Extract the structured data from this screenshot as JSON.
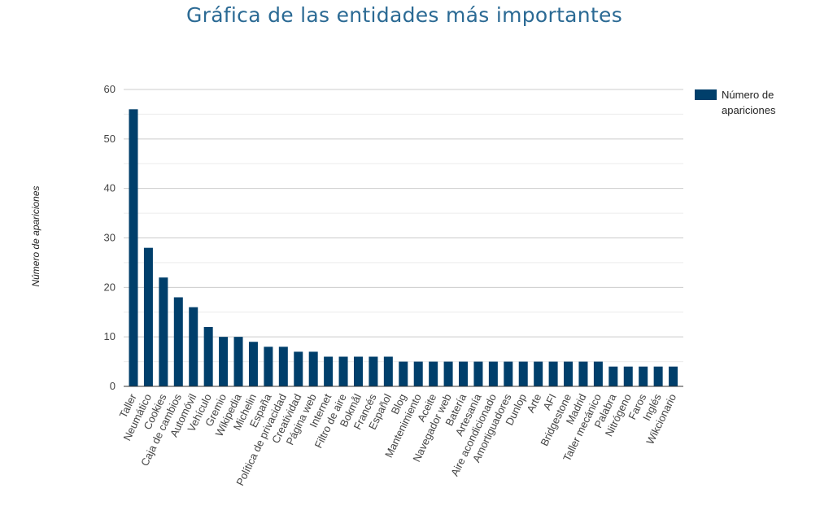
{
  "chart_data": {
    "type": "bar",
    "title": "Gráfica de las entidades más importantes",
    "ylabel": "Número de apariciones",
    "xlabel": "",
    "ylim": [
      0,
      60
    ],
    "yticks": [
      0,
      10,
      20,
      30,
      40,
      50,
      60
    ],
    "grid": true,
    "legend_position": "top-right",
    "bar_color": "#003f6b",
    "categories": [
      "Taller",
      "Neumático",
      "Cookies",
      "Caja de cambios",
      "Automóvil",
      "Vehículo",
      "Gremio",
      "Wikipedia",
      "Michelin",
      "España",
      "Política de privacidad",
      "Creatividad",
      "Página web",
      "Internet",
      "Filtro de aire",
      "Bokmål",
      "Francés",
      "Español",
      "Blog",
      "Mantenimiento",
      "Aceite",
      "Navegador web",
      "Batería",
      "Artesanía",
      "Aire acondicionado",
      "Amortiguadores",
      "Dunlop",
      "Arte",
      "AFI",
      "Bridgestone",
      "Madrid",
      "Taller mecánico",
      "Palabra",
      "Nitrógeno",
      "Faros",
      "Inglés",
      "Wikcionario"
    ],
    "series": [
      {
        "name": "Número de apariciones",
        "values": [
          56,
          28,
          22,
          18,
          16,
          12,
          10,
          10,
          9,
          8,
          8,
          7,
          7,
          6,
          6,
          6,
          6,
          6,
          5,
          5,
          5,
          5,
          5,
          5,
          5,
          5,
          5,
          5,
          5,
          5,
          5,
          5,
          4,
          4,
          4,
          4,
          4
        ]
      }
    ]
  },
  "legend": {
    "line1": "Número de",
    "line2": "apariciones"
  }
}
